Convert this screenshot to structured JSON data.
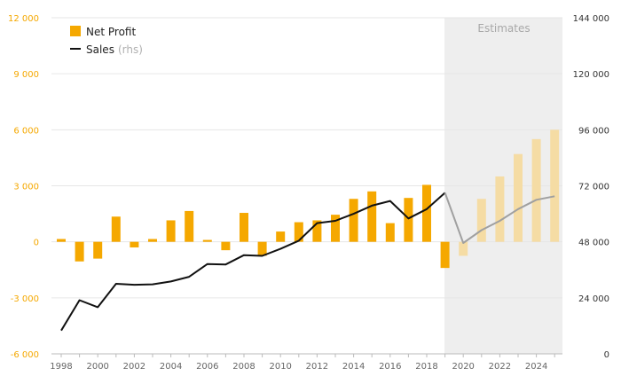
{
  "chart_data": {
    "type": "bar",
    "x": [
      1998,
      1999,
      2000,
      2001,
      2002,
      2003,
      2004,
      2005,
      2006,
      2007,
      2008,
      2009,
      2010,
      2011,
      2012,
      2013,
      2014,
      2015,
      2016,
      2017,
      2018,
      2019,
      2020,
      2021,
      2022,
      2023,
      2024,
      2025
    ],
    "series": [
      {
        "name": "Net Profit",
        "kind": "bar",
        "axis": "left",
        "color": "#f5a800",
        "estimate_color": "#f5dca4",
        "values": [
          150,
          -1050,
          -900,
          1350,
          -300,
          150,
          1150,
          1650,
          100,
          -450,
          1550,
          -750,
          550,
          1050,
          1150,
          1450,
          2300,
          2700,
          1000,
          2350,
          3050,
          -1400,
          -750,
          2300,
          3500,
          4700,
          5500,
          6000
        ]
      },
      {
        "name": "Sales",
        "name_suffix": "(rhs)",
        "kind": "line",
        "axis": "right",
        "color": "#111111",
        "estimate_color": "#a0a0a0",
        "x": [
          1998,
          1999,
          2000,
          2001,
          2002,
          2003,
          2004,
          2005,
          2006,
          2007,
          2008,
          2009,
          2010,
          2011,
          2012,
          2013,
          2014,
          2015,
          2016,
          2017,
          2018,
          2019,
          2020,
          2021,
          2022,
          2023,
          2024,
          2025
        ],
        "values": [
          10000,
          23000,
          20000,
          30000,
          29600,
          29800,
          31000,
          33000,
          38500,
          38300,
          42300,
          42000,
          45000,
          48500,
          56000,
          57000,
          60000,
          63500,
          65500,
          58000,
          62000,
          69000,
          47500,
          53000,
          57000,
          62000,
          66000,
          67500
        ]
      }
    ],
    "estimates_from": 2020,
    "estimates_label": "Estimates",
    "y_left": {
      "lim": [
        -6000,
        12000
      ],
      "ticks": [
        -6000,
        -3000,
        0,
        3000,
        6000,
        9000,
        12000
      ],
      "tick_labels": [
        "-6 000",
        "-3 000",
        "0",
        "3 000",
        "6 000",
        "9 000",
        "12 000"
      ]
    },
    "y_right": {
      "lim": [
        0,
        144000
      ],
      "ticks": [
        0,
        24000,
        48000,
        72000,
        96000,
        120000,
        144000
      ],
      "tick_labels": [
        "0",
        "24 000",
        "48 000",
        "72 000",
        "96 000",
        "120 000",
        "144 000"
      ]
    },
    "x_ticks": [
      1998,
      2000,
      2002,
      2004,
      2006,
      2008,
      2010,
      2012,
      2014,
      2016,
      2018,
      2020,
      2022,
      2024
    ],
    "x_tick_labels": [
      "1998",
      "2000",
      "2002",
      "2004",
      "2006",
      "2008",
      "2010",
      "2012",
      "2014",
      "2016",
      "2018",
      "2020",
      "2022",
      "2024"
    ],
    "grid": true,
    "legend_position": "top-left",
    "colors": {
      "left_tick": "#f5a800",
      "grid": "#e6e6e6",
      "estimate_band": "#eeeeee"
    }
  }
}
